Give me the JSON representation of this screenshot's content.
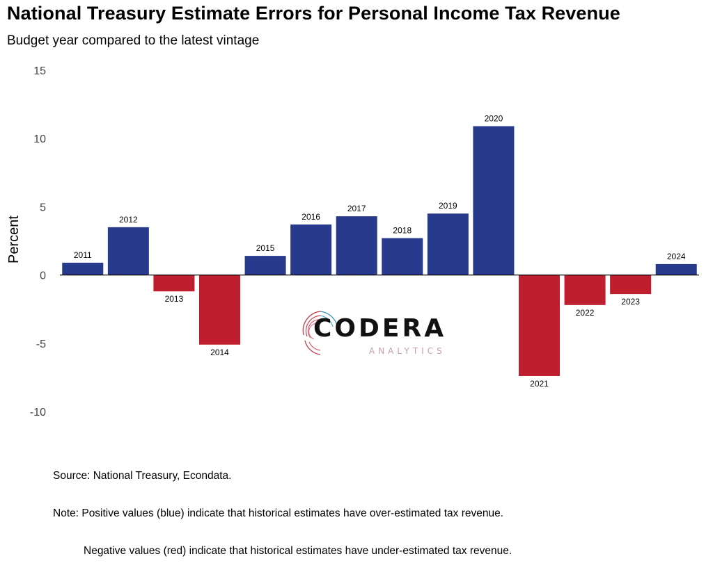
{
  "header": {
    "title": "National Treasury Estimate Errors for Personal Income Tax Revenue",
    "subtitle": "Budget year compared to the latest vintage"
  },
  "chart_data": {
    "type": "bar",
    "title": "National Treasury Estimate Errors for Personal Income Tax Revenue",
    "subtitle": "Budget year compared to the latest vintage",
    "xlabel": "",
    "ylabel": "Percent",
    "ylim": [
      -10,
      15
    ],
    "yticks": [
      15,
      10,
      5,
      0,
      -5,
      -10
    ],
    "grid": false,
    "legend": "none",
    "positive_color": "#283a8c",
    "negative_color": "#be1e2d",
    "categories": [
      "2011",
      "2012",
      "2013",
      "2014",
      "2015",
      "2016",
      "2017",
      "2018",
      "2019",
      "2020",
      "2021",
      "2022",
      "2023",
      "2024"
    ],
    "values": [
      0.9,
      3.5,
      -1.2,
      -5.1,
      1.4,
      3.7,
      4.3,
      2.7,
      4.5,
      10.9,
      -7.4,
      -2.2,
      -1.4,
      0.8
    ]
  },
  "logo": {
    "word": "CODERA",
    "sub": "ANALYTICS"
  },
  "footer": {
    "source": "Source: National Treasury, Econdata.",
    "note_line1": "Note: Positive values (blue) indicate that historical estimates have over-estimated tax revenue.",
    "note_line2": "Negative values (red) indicate that historical estimates have under-estimated tax revenue."
  }
}
